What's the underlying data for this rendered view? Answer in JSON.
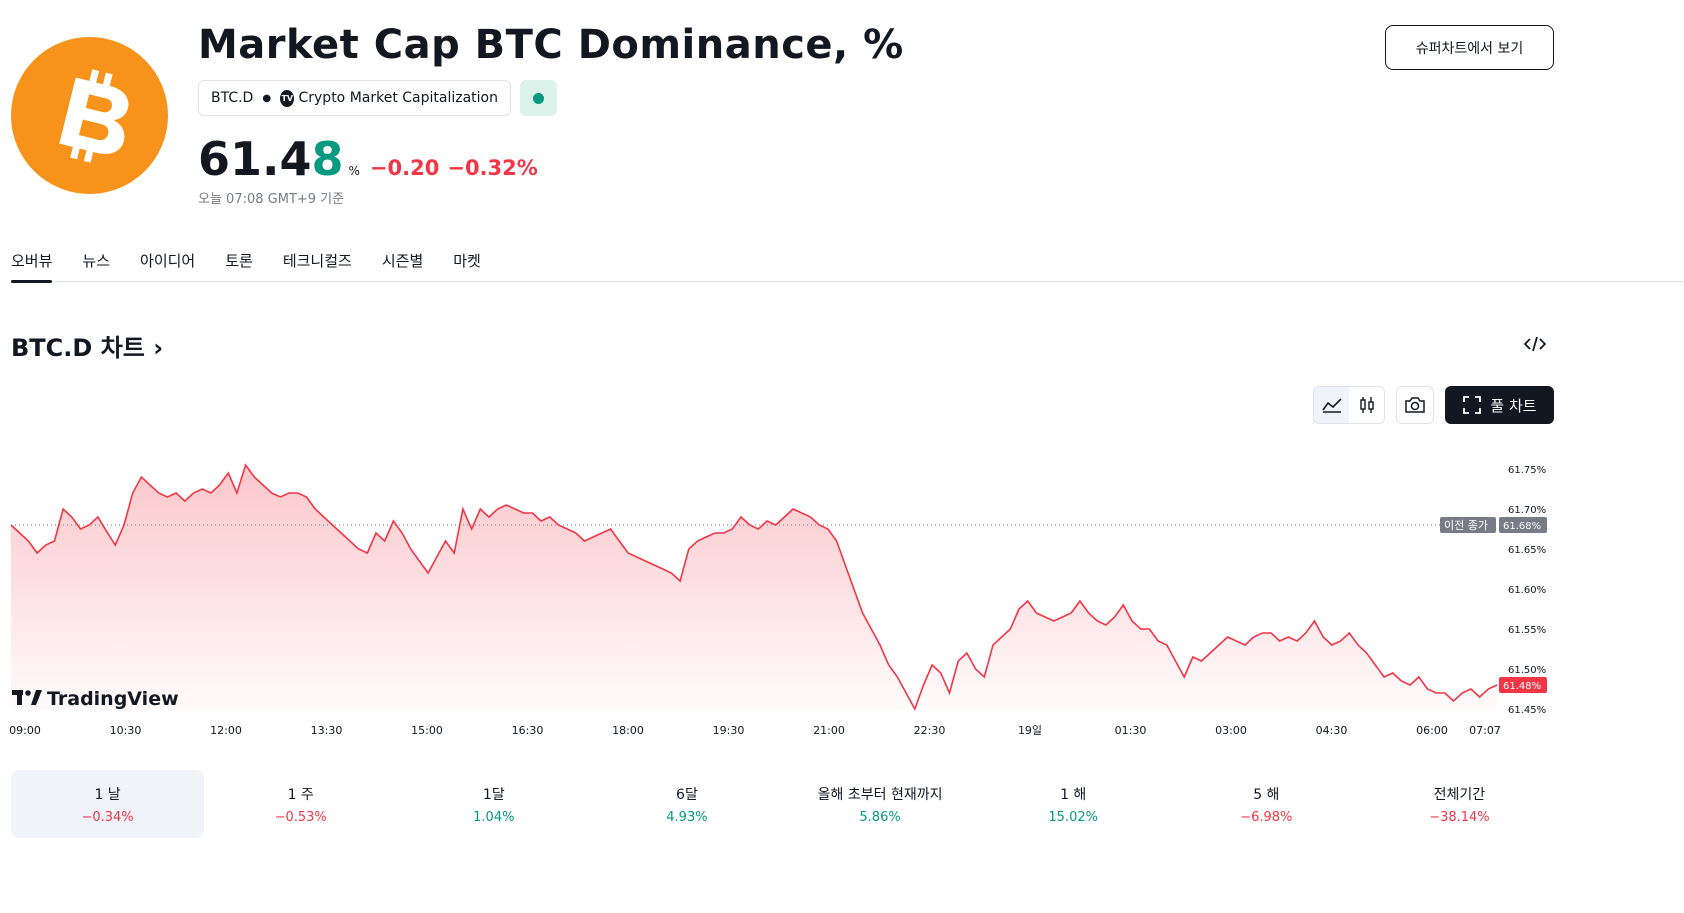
{
  "header": {
    "logo_icon": "bitcoin-icon",
    "title": "Market Cap BTC Dominance, %",
    "symbol": "BTC.D",
    "source_badge": "TV",
    "source": "Crypto Market Capitalization",
    "status_color": "#089981",
    "price_main": "61.4",
    "price_last_digit": "8",
    "price_unit": "%",
    "change_abs": "−0.20",
    "change_pct": "−0.32%",
    "timestamp": "오늘 07:08 GMT+9 기준",
    "supercharts_button": "슈퍼차트에서 보기"
  },
  "tabs": [
    {
      "label": "오버뷰",
      "active": true
    },
    {
      "label": "뉴스",
      "active": false
    },
    {
      "label": "아이디어",
      "active": false
    },
    {
      "label": "토론",
      "active": false
    },
    {
      "label": "테크니컬즈",
      "active": false
    },
    {
      "label": "시즌별",
      "active": false
    },
    {
      "label": "마켓",
      "active": false
    }
  ],
  "chart_section": {
    "title": "BTC.D 차트",
    "title_chevron": "›",
    "embed_icon": "code-embed-icon",
    "tools": [
      "area-chart-icon",
      "candlestick-icon",
      "camera-icon"
    ],
    "full_chart_button": "풀 차트",
    "full_chart_icon": "fullscreen-icon",
    "brand": "TradingView"
  },
  "chart_data": {
    "type": "area",
    "x_ticks": [
      "09:00",
      "10:30",
      "12:00",
      "13:30",
      "15:00",
      "16:30",
      "18:00",
      "19:30",
      "21:00",
      "22:30",
      "19일",
      "01:30",
      "03:00",
      "04:30",
      "06:00",
      "07:07"
    ],
    "y_ticks": [
      "61.75%",
      "61.70%",
      "61.65%",
      "61.60%",
      "61.55%",
      "61.50%",
      "61.45%"
    ],
    "ylim": [
      61.45,
      61.75
    ],
    "previous_close": {
      "label": "이전 종가",
      "value": "61.68%",
      "y": 61.68
    },
    "last_price": {
      "label": "61.48%",
      "y": 61.48
    },
    "line_color": "#f23645",
    "series": [
      {
        "values": [
          61.68,
          61.67,
          61.66,
          61.645,
          61.655,
          61.66,
          61.7,
          61.69,
          61.675,
          61.68,
          61.69,
          61.672,
          61.655,
          61.68,
          61.72,
          61.74,
          61.73,
          61.72,
          61.715,
          61.72,
          61.71,
          61.72,
          61.725,
          61.72,
          61.73,
          61.745,
          61.72,
          61.755,
          61.74,
          61.73,
          61.72,
          61.715,
          61.72,
          61.72,
          61.715,
          61.7,
          61.69,
          61.68,
          61.67,
          61.66,
          61.65,
          61.645,
          61.67,
          61.66,
          61.685,
          61.67,
          61.65,
          61.635,
          61.62,
          61.64,
          61.66,
          61.645,
          61.7,
          61.675,
          61.7,
          61.69,
          61.7,
          61.705,
          61.7,
          61.695,
          61.695,
          61.685,
          61.69,
          61.68,
          61.675,
          61.67,
          61.66,
          61.665,
          61.67,
          61.675,
          61.66,
          61.645,
          61.64,
          61.635,
          61.63,
          61.625,
          61.62,
          61.61,
          61.65,
          61.66,
          61.665,
          61.67,
          61.67,
          61.675,
          61.69,
          61.68,
          61.675,
          61.685,
          61.68,
          61.69,
          61.7,
          61.695,
          61.69,
          61.68,
          61.675,
          61.66,
          61.63,
          61.6,
          61.57,
          61.55,
          61.53,
          61.505,
          61.49,
          61.47,
          61.45,
          61.48,
          61.505,
          61.495,
          61.47,
          61.51,
          61.52,
          61.5,
          61.49,
          61.53,
          61.54,
          61.55,
          61.575,
          61.585,
          61.57,
          61.565,
          61.56,
          61.565,
          61.57,
          61.585,
          61.57,
          61.56,
          61.555,
          61.565,
          61.58,
          61.56,
          61.55,
          61.55,
          61.535,
          61.53,
          61.51,
          61.49,
          61.515,
          61.51,
          61.52,
          61.53,
          61.54,
          61.535,
          61.53,
          61.54,
          61.545,
          61.545,
          61.535,
          61.54,
          61.535,
          61.545,
          61.56,
          61.54,
          61.53,
          61.535,
          61.545,
          61.53,
          61.52,
          61.505,
          61.49,
          61.495,
          61.485,
          61.48,
          61.49,
          61.475,
          61.47,
          61.47,
          61.46,
          61.47,
          61.475,
          61.465,
          61.475,
          61.48
        ]
      }
    ]
  },
  "periods": [
    {
      "label": "1 날",
      "value": "−0.34%",
      "trend": "neg",
      "selected": true
    },
    {
      "label": "1 주",
      "value": "−0.53%",
      "trend": "neg",
      "selected": false
    },
    {
      "label": "1달",
      "value": "1.04%",
      "trend": "pos",
      "selected": false
    },
    {
      "label": "6달",
      "value": "4.93%",
      "trend": "pos",
      "selected": false
    },
    {
      "label": "올해 초부터 현재까지",
      "value": "5.86%",
      "trend": "pos",
      "selected": false
    },
    {
      "label": "1 해",
      "value": "15.02%",
      "trend": "pos",
      "selected": false
    },
    {
      "label": "5 해",
      "value": "−6.98%",
      "trend": "neg",
      "selected": false
    },
    {
      "label": "전체기간",
      "value": "−38.14%",
      "trend": "neg",
      "selected": false
    }
  ]
}
